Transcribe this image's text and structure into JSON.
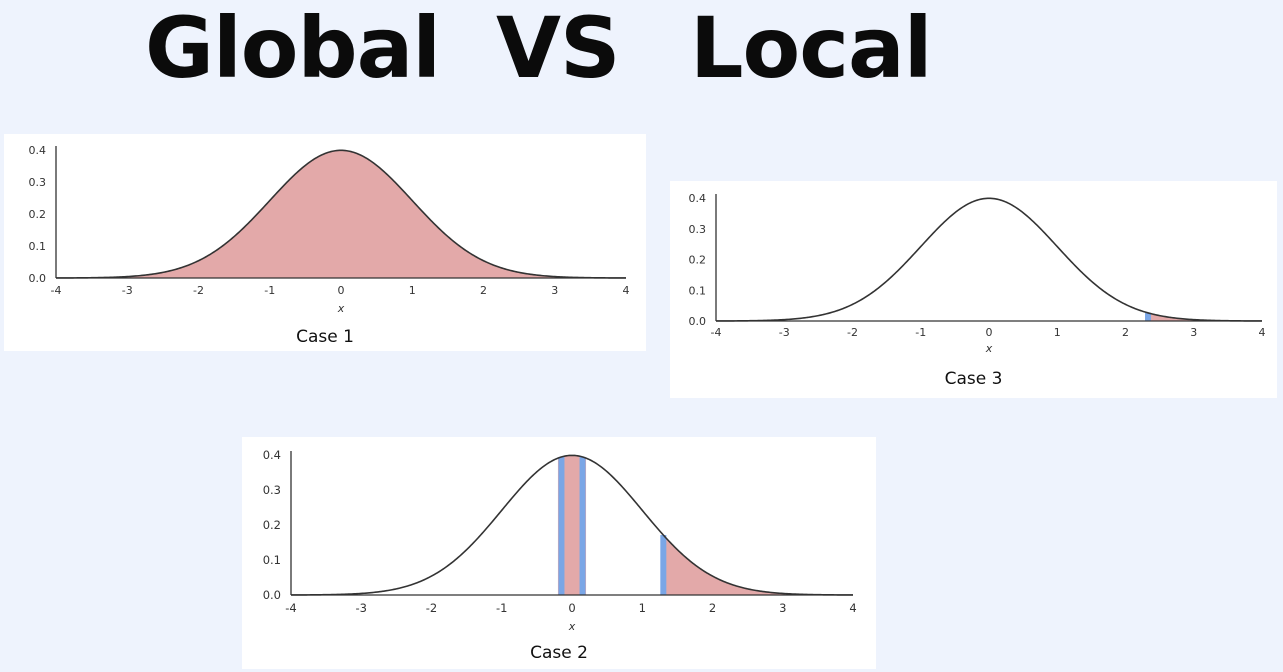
{
  "title": {
    "word1": "Global",
    "word2": "VS",
    "word3": "Local"
  },
  "chart_data": [
    {
      "type": "area",
      "caption": "Case 1",
      "xlabel": "x",
      "ylabel": "",
      "xlim": [
        -4,
        4
      ],
      "ylim": [
        0,
        0.4
      ],
      "xticks": [
        "-4",
        "-3",
        "-2",
        "-1",
        "0",
        "1",
        "2",
        "3",
        "4"
      ],
      "yticks": [
        "0.0",
        "0.1",
        "0.2",
        "0.3",
        "0.4"
      ],
      "curve": "standard normal density",
      "shaded": [
        {
          "from": -4,
          "to": 4,
          "color": "#e3a9a9"
        }
      ],
      "markers": []
    },
    {
      "type": "area",
      "caption": "Case 3",
      "xlabel": "x",
      "ylabel": "",
      "xlim": [
        -4,
        4
      ],
      "ylim": [
        0,
        0.4
      ],
      "xticks": [
        "-4",
        "-3",
        "-2",
        "-1",
        "0",
        "1",
        "2",
        "3",
        "4"
      ],
      "yticks": [
        "0.0",
        "0.1",
        "0.2",
        "0.3",
        "0.4"
      ],
      "curve": "standard normal density",
      "shaded": [
        {
          "from": 2.3,
          "to": 4,
          "color": "#e3a9a9"
        }
      ],
      "markers": [
        {
          "x": 2.33,
          "color": "#7aa6e6"
        }
      ]
    },
    {
      "type": "area",
      "caption": "Case 2",
      "xlabel": "x",
      "ylabel": "",
      "xlim": [
        -4,
        4
      ],
      "ylim": [
        0,
        0.4
      ],
      "xticks": [
        "-4",
        "-3",
        "-2",
        "-1",
        "0",
        "1",
        "2",
        "3",
        "4"
      ],
      "yticks": [
        "0.0",
        "0.1",
        "0.2",
        "0.3",
        "0.4"
      ],
      "curve": "standard normal density",
      "shaded": [
        {
          "from": -0.2,
          "to": 0.2,
          "color": "#e3a9a9"
        },
        {
          "from": 1.28,
          "to": 4,
          "color": "#e3a9a9"
        }
      ],
      "markers": [
        {
          "x": -0.15,
          "color": "#7aa6e6"
        },
        {
          "x": 0.15,
          "color": "#7aa6e6"
        },
        {
          "x": 1.3,
          "color": "#7aa6e6"
        }
      ]
    }
  ]
}
